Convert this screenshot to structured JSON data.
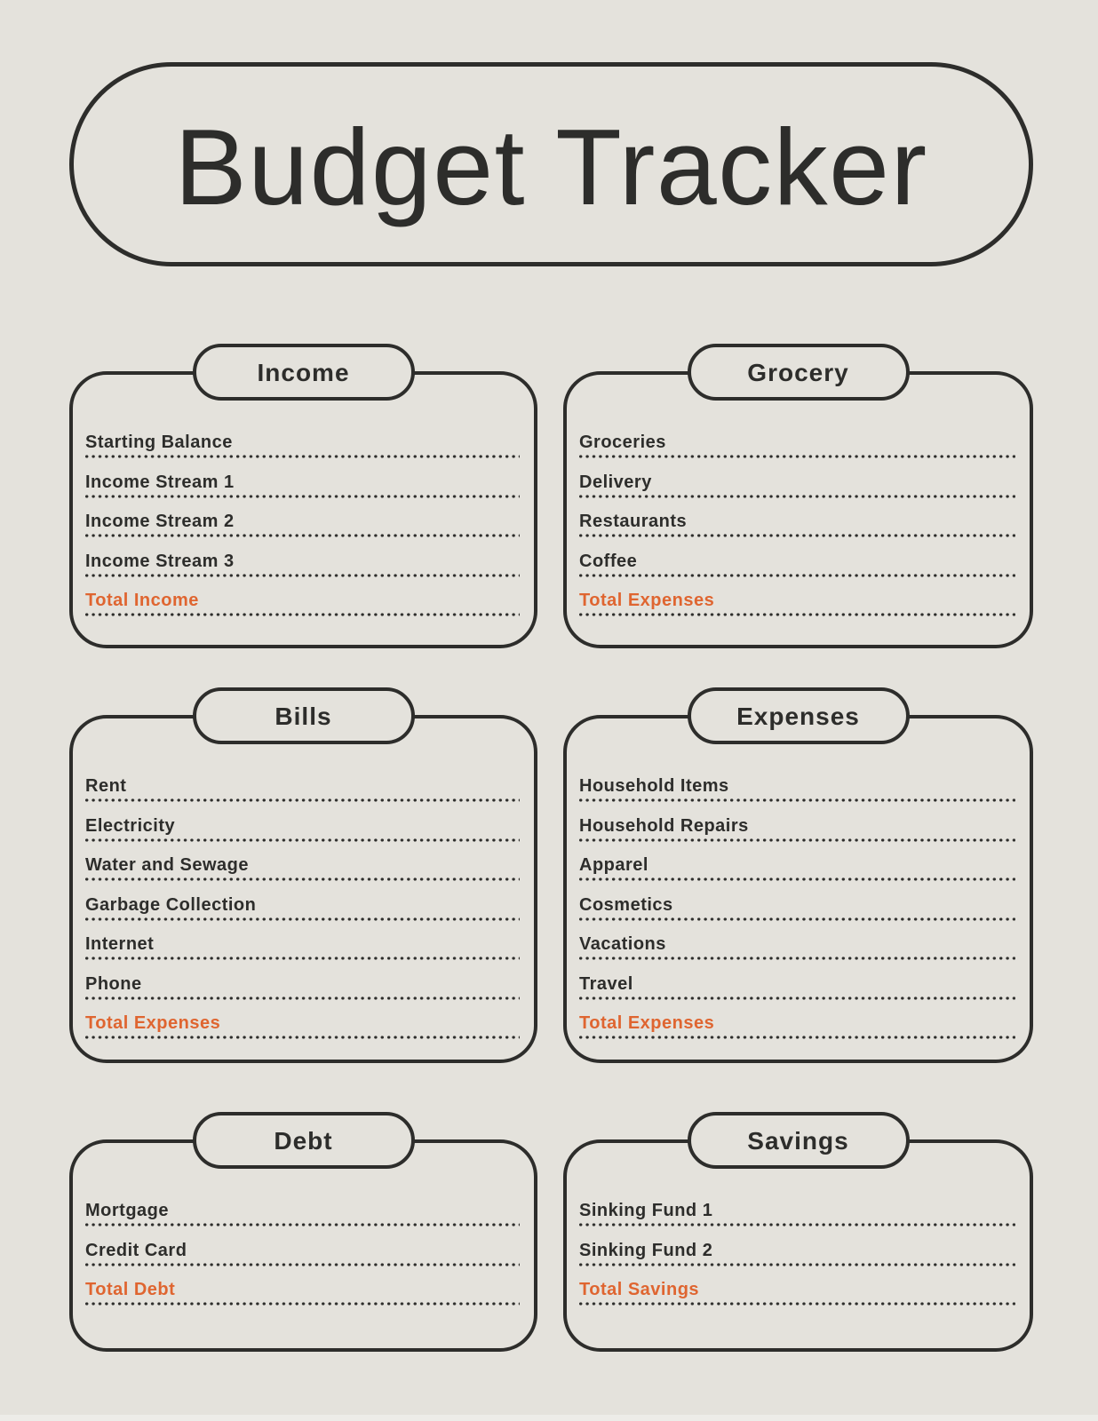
{
  "title": {
    "text": "Budget Tracker"
  },
  "colors": {
    "background": "#E4E2DC",
    "ink": "#2D2D2B",
    "accent": "#DF6530"
  },
  "sections": [
    {
      "title": "Income",
      "items": [
        {
          "label": "Starting Balance",
          "total": false
        },
        {
          "label": "Income Stream 1",
          "total": false
        },
        {
          "label": "Income Stream 2",
          "total": false
        },
        {
          "label": "Income Stream 3",
          "total": false
        },
        {
          "label": "Total Income",
          "total": true
        }
      ]
    },
    {
      "title": "Grocery",
      "items": [
        {
          "label": "Groceries",
          "total": false
        },
        {
          "label": "Delivery",
          "total": false
        },
        {
          "label": "Restaurants",
          "total": false
        },
        {
          "label": "Coffee",
          "total": false
        },
        {
          "label": "Total Expenses",
          "total": true
        }
      ]
    },
    {
      "title": "Bills",
      "items": [
        {
          "label": "Rent",
          "total": false
        },
        {
          "label": "Electricity",
          "total": false
        },
        {
          "label": "Water and Sewage",
          "total": false
        },
        {
          "label": "Garbage Collection",
          "total": false
        },
        {
          "label": "Internet",
          "total": false
        },
        {
          "label": "Phone",
          "total": false
        },
        {
          "label": "Total Expenses",
          "total": true
        }
      ]
    },
    {
      "title": "Expenses",
      "items": [
        {
          "label": "Household Items",
          "total": false
        },
        {
          "label": "Household Repairs",
          "total": false
        },
        {
          "label": "Apparel",
          "total": false
        },
        {
          "label": "Cosmetics",
          "total": false
        },
        {
          "label": "Vacations",
          "total": false
        },
        {
          "label": "Travel",
          "total": false
        },
        {
          "label": "Total Expenses",
          "total": true
        }
      ]
    },
    {
      "title": "Debt",
      "items": [
        {
          "label": "Mortgage",
          "total": false
        },
        {
          "label": "Credit Card",
          "total": false
        },
        {
          "label": "Total Debt",
          "total": true
        }
      ]
    },
    {
      "title": "Savings",
      "items": [
        {
          "label": "Sinking Fund 1",
          "total": false
        },
        {
          "label": "Sinking Fund 2",
          "total": false
        },
        {
          "label": "Total Savings",
          "total": true
        }
      ]
    }
  ]
}
